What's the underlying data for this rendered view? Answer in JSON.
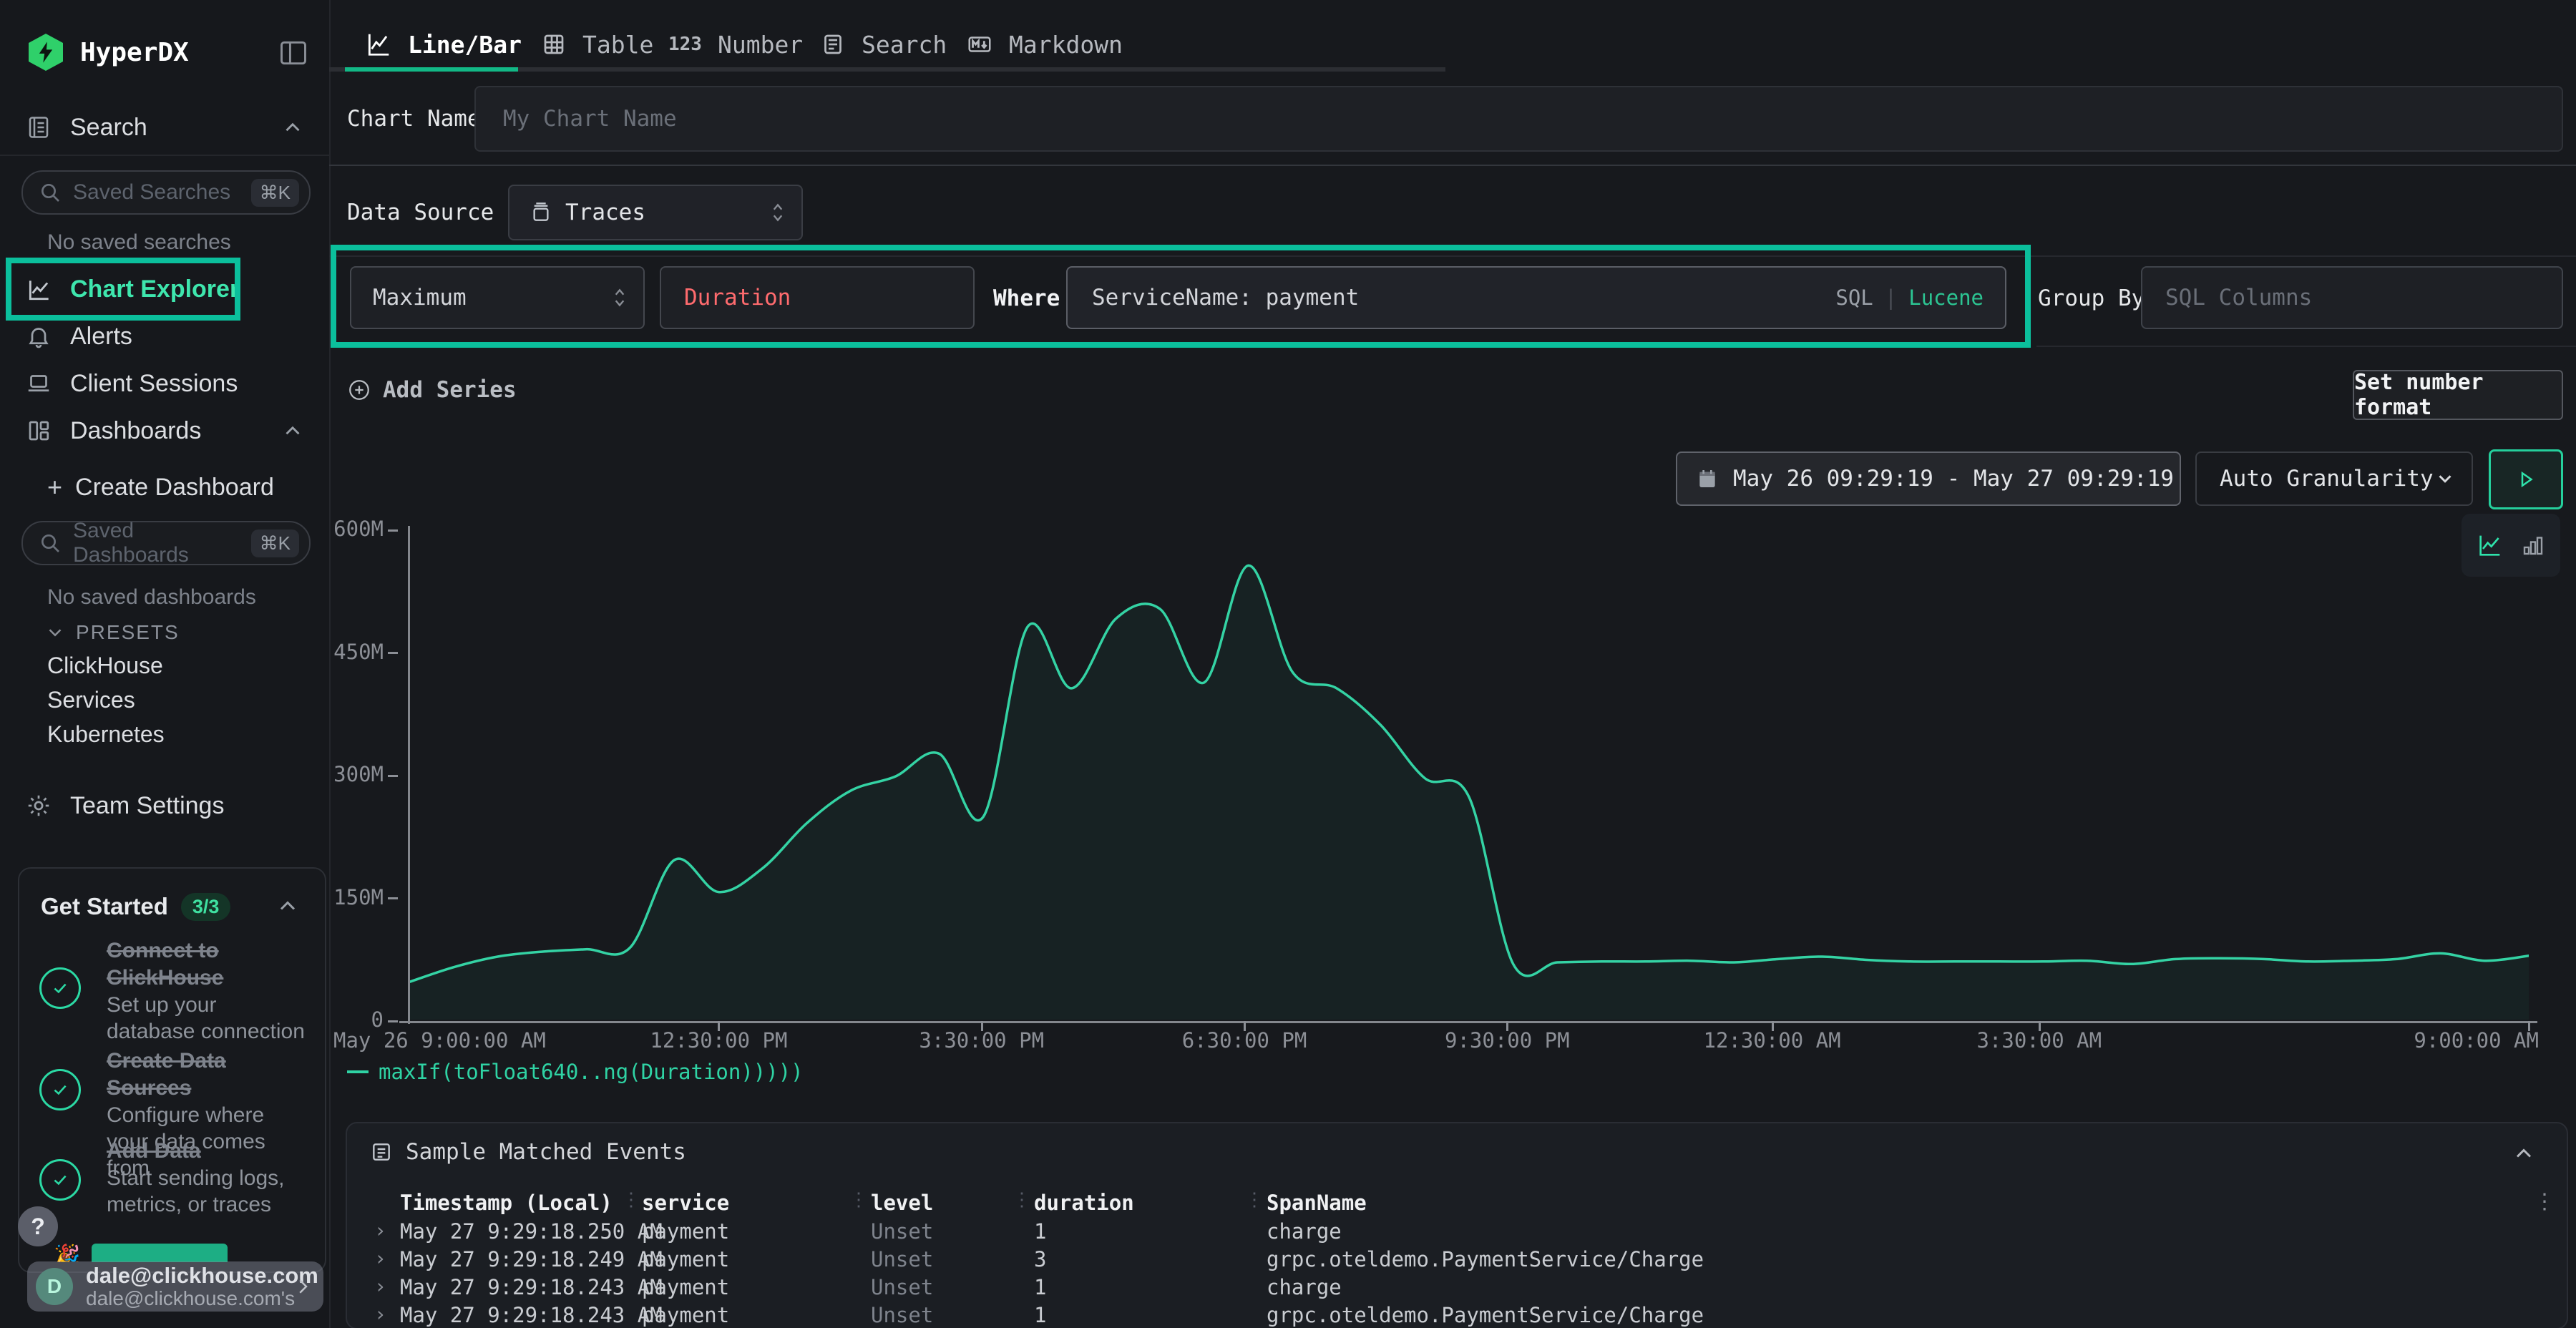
{
  "app": {
    "accent": "#0bbf9c",
    "line_color": "#34d3a4",
    "logo_green": "#2fd06a"
  },
  "sidebar": {
    "logo_text": "HyperDX",
    "search_section_label": "Search",
    "saved_searches": {
      "placeholder": "Saved Searches",
      "shortcut": "⌘K",
      "empty": "No saved searches"
    },
    "nav": {
      "chart_explorer": "Chart Explorer",
      "alerts": "Alerts",
      "client_sessions": "Client Sessions",
      "dashboards": "Dashboards"
    },
    "dashboards_section": {
      "create": "Create Dashboard",
      "saved_placeholder": "Saved Dashboards",
      "shortcut": "⌘K",
      "empty": "No saved dashboards",
      "presets_label": "PRESETS",
      "presets": [
        "ClickHouse",
        "Services",
        "Kubernetes"
      ]
    },
    "team_settings": "Team Settings",
    "get_started": {
      "title": "Get Started",
      "badge": "3/3",
      "items": [
        {
          "title": "Connect to ClickHouse",
          "desc": "Set up your database connection"
        },
        {
          "title": "Create Data Sources",
          "desc": "Configure where your data comes from"
        },
        {
          "title": "Add Data",
          "desc": "Start sending logs, metrics, or traces"
        }
      ]
    },
    "help_label": "?",
    "hidden_item_emoji": "🎉",
    "user": {
      "initial": "D",
      "email": "dale@clickhouse.com",
      "subtitle": "dale@clickhouse.com's"
    }
  },
  "tabs": {
    "items": [
      {
        "label": "Line/Bar",
        "active": true
      },
      {
        "label": "Table",
        "active": false
      },
      {
        "label": "Number",
        "active": false
      },
      {
        "label": "Search",
        "active": false
      },
      {
        "label": "Markdown",
        "active": false
      }
    ]
  },
  "form": {
    "chart_name": {
      "label": "Chart Name",
      "placeholder": "My Chart Name"
    },
    "data_source": {
      "label": "Data Source",
      "value": "Traces"
    },
    "series": {
      "aggregation": "Maximum",
      "field": "Duration",
      "field_color": "#ff6b6e",
      "where_label": "Where",
      "where_value": "ServiceName: payment",
      "sql_label": "SQL",
      "pipe": "|",
      "lucene_label": "Lucene",
      "group_by_label": "Group By",
      "group_by_placeholder": "SQL Columns"
    },
    "add_series": "Add Series",
    "set_number_format": "Set number format"
  },
  "controls": {
    "date_range": "May 26 09:29:19 - May 27 09:29:19",
    "granularity": "Auto Granularity"
  },
  "chart_data": {
    "type": "line",
    "title": "",
    "xlabel": "",
    "ylabel": "",
    "ylim": [
      0,
      600000000
    ],
    "unit": "M",
    "grid": false,
    "legend_position": "bottom-left",
    "series_name": "maxIf(toFloat640..ng(Duration)))))",
    "x_start": "May 26 9:00:00 AM",
    "x_end": "May 27 9:00:00 AM",
    "x_step_minutes": 30,
    "values_millions": [
      46,
      64,
      77,
      83,
      86,
      88,
      195,
      156,
      185,
      240,
      280,
      297,
      325,
      248,
      480,
      405,
      490,
      502,
      412,
      555,
      425,
      405,
      360,
      295,
      272,
      68,
      70,
      71,
      71,
      72,
      70,
      74,
      77,
      73,
      71,
      71,
      71,
      71,
      72,
      68,
      74,
      75,
      74,
      71,
      72,
      74,
      81,
      72,
      78
    ],
    "yticks": [
      {
        "label": "600M",
        "v": 600
      },
      {
        "label": "450M",
        "v": 450
      },
      {
        "label": "300M",
        "v": 300
      },
      {
        "label": "150M",
        "v": 150
      },
      {
        "label": "0",
        "v": 0
      }
    ],
    "xticks": [
      {
        "label": "May 26 9:00:00 AM",
        "f": 0
      },
      {
        "label": "12:30:00 PM",
        "f": 0.146
      },
      {
        "label": "3:30:00 PM",
        "f": 0.27
      },
      {
        "label": "6:30:00 PM",
        "f": 0.394
      },
      {
        "label": "9:30:00 PM",
        "f": 0.518
      },
      {
        "label": "12:30:00 AM",
        "f": 0.643
      },
      {
        "label": "3:30:00 AM",
        "f": 0.769
      },
      {
        "label": "9:00:00 AM",
        "f": 1
      }
    ]
  },
  "legend": {
    "series": "maxIf(toFloat640..ng(Duration)))))"
  },
  "events_table": {
    "title": "Sample Matched Events",
    "columns": [
      "Timestamp (Local)",
      "service",
      "level",
      "duration",
      "SpanName"
    ],
    "rows": [
      {
        "ts": "May 27 9:29:18.250 AM",
        "service": "payment",
        "level": "Unset",
        "duration": "1",
        "span": "charge"
      },
      {
        "ts": "May 27 9:29:18.249 AM",
        "service": "payment",
        "level": "Unset",
        "duration": "3",
        "span": "grpc.oteldemo.PaymentService/Charge"
      },
      {
        "ts": "May 27 9:29:18.243 AM",
        "service": "payment",
        "level": "Unset",
        "duration": "1",
        "span": "charge"
      },
      {
        "ts": "May 27 9:29:18.243 AM",
        "service": "payment",
        "level": "Unset",
        "duration": "1",
        "span": "grpc.oteldemo.PaymentService/Charge"
      }
    ]
  }
}
